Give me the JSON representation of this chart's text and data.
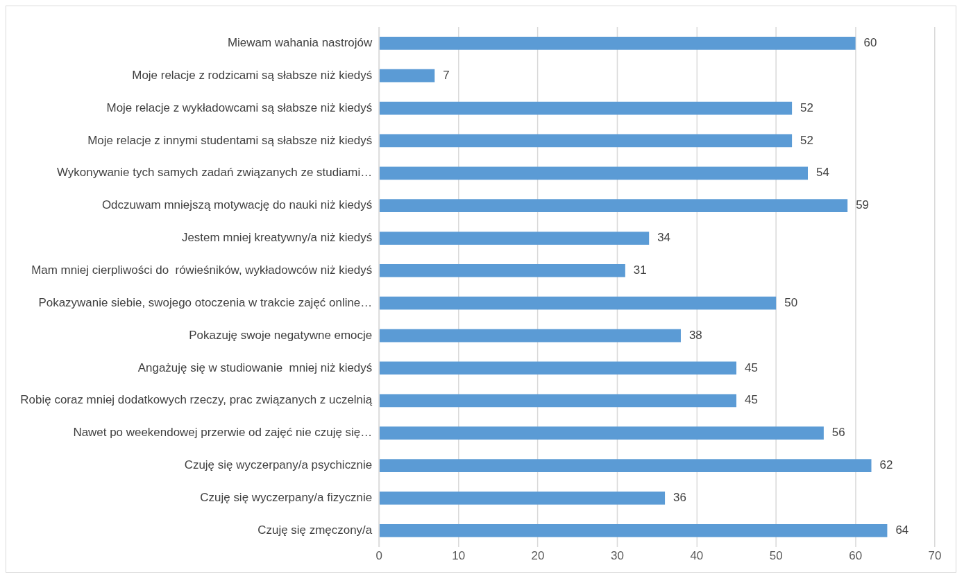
{
  "chart_data": {
    "type": "bar",
    "orientation": "horizontal",
    "categories": [
      "Miewam wahania nastrojów",
      "Moje relacje z rodzicami są słabsze niż kiedyś",
      "Moje relacje z wykładowcami są słabsze niż kiedyś",
      "Moje relacje z innymi studentami są słabsze niż kiedyś",
      "Wykonywanie tych samych zadań związanych ze studiami…",
      "Odczuwam mniejszą motywację do nauki niż kiedyś",
      "Jestem mniej kreatywny/a niż kiedyś",
      "Mam mniej cierpliwości do  rówieśników, wykładowców niż kiedyś",
      "Pokazywanie siebie, swojego otoczenia w trakcie zajęć online…",
      "Pokazuję swoje negatywne emocje",
      "Angażuję się w studiowanie  mniej niż kiedyś",
      "Robię coraz mniej dodatkowych rzeczy, prac związanych z uczelnią",
      "Nawet po weekendowej przerwie od zajęć nie czuję się…",
      "Czuję się wyczerpany/a psychicznie",
      "Czuję się wyczerpany/a fizycznie",
      "Czuję się zmęczony/a"
    ],
    "values": [
      60,
      7,
      52,
      52,
      54,
      59,
      34,
      31,
      50,
      38,
      45,
      45,
      56,
      62,
      36,
      64
    ],
    "color": "#5b9bd5",
    "xlim": [
      0,
      70
    ],
    "xticks": [
      0,
      10,
      20,
      30,
      40,
      50,
      60,
      70
    ],
    "grid": "x",
    "data_labels": true,
    "legend": false
  }
}
